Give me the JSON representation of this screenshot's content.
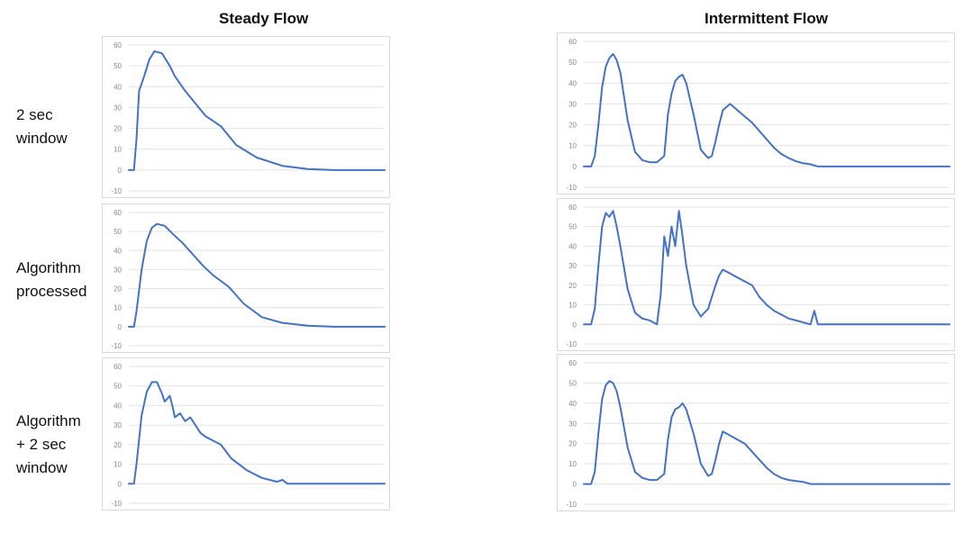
{
  "column_titles": [
    "Steady Flow",
    "Intermittent Flow"
  ],
  "row_labels": [
    "2 sec\nwindow",
    "Algorithm\nprocessed",
    "Algorithm\n+ 2 sec\nwindow"
  ],
  "colors": {
    "series": "#4472c4",
    "grid": "#e2e2e2",
    "frame": "#d9d9d9"
  },
  "chart_data": [
    {
      "type": "line",
      "title": "",
      "xlabel": "",
      "ylabel": "",
      "ylim": [
        -10,
        60
      ],
      "yticks": [
        -10,
        0,
        10,
        20,
        30,
        40,
        50,
        60
      ],
      "grid": true,
      "series": [
        {
          "x": [
            0,
            2,
            3,
            4,
            6,
            8,
            10,
            13,
            16,
            18,
            22,
            26,
            30,
            36,
            42,
            50,
            60,
            70,
            80,
            90,
            100
          ],
          "y": [
            0,
            0,
            15,
            38,
            45,
            53,
            57,
            56,
            50,
            45,
            38,
            32,
            26,
            21,
            12,
            6,
            2,
            0.5,
            0,
            0,
            0
          ]
        }
      ]
    },
    {
      "type": "line",
      "title": "",
      "xlabel": "",
      "ylabel": "",
      "ylim": [
        -10,
        60
      ],
      "yticks": [
        -10,
        0,
        10,
        20,
        30,
        40,
        50,
        60
      ],
      "grid": true,
      "series": [
        {
          "x": [
            0,
            2,
            3,
            5,
            7,
            9,
            11,
            14,
            17,
            21,
            25,
            29,
            33,
            39,
            45,
            52,
            60,
            70,
            80,
            90,
            100
          ],
          "y": [
            0,
            0,
            8,
            30,
            45,
            52,
            54,
            53,
            49,
            44,
            38,
            32,
            27,
            21,
            12,
            5,
            2,
            0.5,
            0,
            0,
            0
          ]
        }
      ]
    },
    {
      "type": "line",
      "title": "",
      "xlabel": "",
      "ylabel": "",
      "ylim": [
        -10,
        60
      ],
      "yticks": [
        -10,
        0,
        10,
        20,
        30,
        40,
        50,
        60
      ],
      "grid": true,
      "series": [
        {
          "x": [
            0,
            2,
            3,
            5,
            7,
            9,
            11,
            13,
            14,
            16,
            17,
            18,
            20,
            22,
            24,
            26,
            28,
            30,
            33,
            36,
            40,
            46,
            52,
            58,
            60,
            62,
            70,
            80,
            90,
            100
          ],
          "y": [
            0,
            0,
            10,
            35,
            47,
            52,
            52,
            46,
            42,
            45,
            40,
            34,
            36,
            32,
            34,
            30,
            26,
            24,
            22,
            20,
            13,
            7,
            3,
            1,
            2,
            0,
            0,
            0,
            0,
            0
          ]
        }
      ]
    },
    {
      "type": "line",
      "title": "",
      "xlabel": "",
      "ylabel": "",
      "ylim": [
        -10,
        60
      ],
      "yticks": [
        -10,
        0,
        10,
        20,
        30,
        40,
        50,
        60
      ],
      "grid": true,
      "series": [
        {
          "x": [
            0,
            2,
            3,
            4,
            5,
            6,
            7,
            8,
            9,
            10,
            12,
            14,
            16,
            18,
            20,
            22,
            23,
            24,
            25,
            26,
            27,
            28,
            30,
            32,
            34,
            35,
            36,
            37,
            38,
            40,
            42,
            44,
            46,
            48,
            50,
            52,
            54,
            56,
            58,
            60,
            62,
            64,
            66,
            68,
            70,
            80,
            90,
            100
          ],
          "y": [
            0,
            0,
            5,
            20,
            38,
            48,
            52,
            54,
            51,
            45,
            22,
            7,
            3,
            2,
            2,
            5,
            25,
            35,
            41,
            43,
            44,
            40,
            25,
            8,
            4,
            5,
            12,
            20,
            27,
            30,
            27,
            24,
            21,
            17,
            13,
            9,
            6,
            4,
            2.5,
            1.5,
            1,
            0,
            0,
            0,
            0,
            0,
            0,
            0
          ]
        }
      ]
    },
    {
      "type": "line",
      "title": "",
      "xlabel": "",
      "ylabel": "",
      "ylim": [
        -10,
        60
      ],
      "yticks": [
        -10,
        0,
        10,
        20,
        30,
        40,
        50,
        60
      ],
      "grid": true,
      "series": [
        {
          "x": [
            0,
            2,
            3,
            4,
            5,
            6,
            7,
            8,
            9,
            10,
            12,
            14,
            16,
            18,
            20,
            21,
            22,
            23,
            24,
            25,
            26,
            27,
            28,
            30,
            32,
            34,
            36,
            37,
            38,
            40,
            42,
            44,
            46,
            48,
            50,
            52,
            54,
            56,
            58,
            60,
            62,
            63,
            64,
            66,
            70,
            80,
            90,
            100
          ],
          "y": [
            0,
            0,
            8,
            30,
            50,
            57,
            55,
            58,
            50,
            40,
            18,
            6,
            3,
            2,
            0,
            15,
            45,
            35,
            50,
            40,
            58,
            45,
            30,
            10,
            4,
            8,
            20,
            25,
            28,
            26,
            24,
            22,
            20,
            14,
            10,
            7,
            5,
            3,
            2,
            1,
            0,
            7,
            0,
            0,
            0,
            0,
            0,
            0
          ]
        }
      ]
    },
    {
      "type": "line",
      "title": "",
      "xlabel": "",
      "ylabel": "",
      "ylim": [
        -10,
        60
      ],
      "yticks": [
        -10,
        0,
        10,
        20,
        30,
        40,
        50,
        60
      ],
      "grid": true,
      "series": [
        {
          "x": [
            0,
            2,
            3,
            4,
            5,
            6,
            7,
            8,
            9,
            10,
            12,
            14,
            16,
            18,
            20,
            22,
            23,
            24,
            25,
            26,
            27,
            28,
            30,
            32,
            34,
            35,
            36,
            37,
            38,
            40,
            42,
            44,
            46,
            48,
            50,
            52,
            54,
            56,
            58,
            60,
            62,
            64,
            66,
            70,
            80,
            90,
            100
          ],
          "y": [
            0,
            0,
            6,
            25,
            42,
            49,
            51,
            50,
            46,
            38,
            18,
            6,
            3,
            2,
            2,
            5,
            22,
            33,
            37,
            38,
            40,
            37,
            25,
            10,
            4,
            5,
            12,
            20,
            26,
            24,
            22,
            20,
            16,
            12,
            8,
            5,
            3,
            2,
            1.5,
            1,
            0,
            0,
            0,
            0,
            0,
            0,
            0
          ]
        }
      ]
    }
  ]
}
